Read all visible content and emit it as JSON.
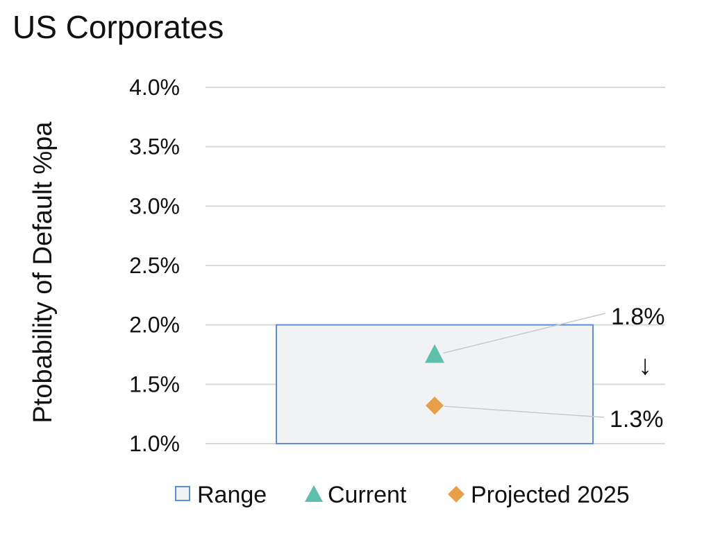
{
  "chart_data": {
    "type": "scatter",
    "title": "US Corporates",
    "ylabel": "Ptobability of Default %pa",
    "xlabel": "",
    "ylim": [
      1.0,
      4.0
    ],
    "yticks": [
      {
        "value": 1.0,
        "label": "1.0%"
      },
      {
        "value": 1.5,
        "label": "1.5%"
      },
      {
        "value": 2.0,
        "label": "2.0%"
      },
      {
        "value": 2.5,
        "label": "2.5%"
      },
      {
        "value": 3.0,
        "label": "3.0%"
      },
      {
        "value": 3.5,
        "label": "3.5%"
      },
      {
        "value": 4.0,
        "label": "4.0%"
      }
    ],
    "grid": true,
    "range": {
      "name": "Range",
      "low": 1.0,
      "high": 2.0,
      "color": "#5b8fd6",
      "fill": "#f0f2f4"
    },
    "series": [
      {
        "name": "Current",
        "value": 1.75,
        "label": "1.8%",
        "marker": "triangle",
        "color": "#5fbfad"
      },
      {
        "name": "Projected 2025",
        "value": 1.32,
        "label": "1.3%",
        "marker": "diamond",
        "color": "#e8a048"
      }
    ],
    "annotation": {
      "symbol": "↓",
      "meaning": "downward-trend-arrow"
    },
    "legend": {
      "placement": "bottom",
      "entries": [
        "Range",
        "Current",
        "Projected 2025"
      ]
    }
  }
}
